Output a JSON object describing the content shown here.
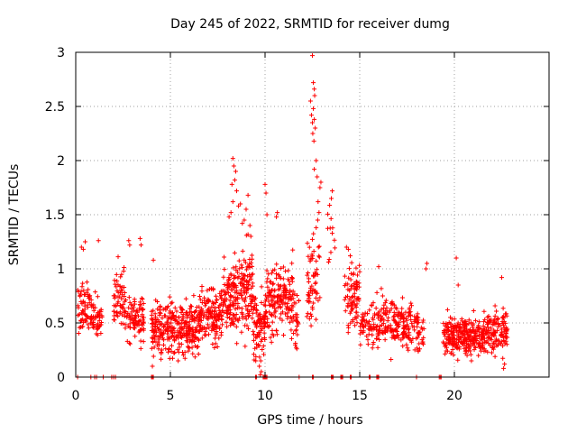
{
  "chart_data": {
    "type": "scatter",
    "title": "Day 245 of 2022, SRMTID for receiver dumg",
    "xlabel": "GPS time / hours",
    "ylabel": "SRMTID / TECUs",
    "xlim": [
      0,
      25
    ],
    "ylim": [
      0,
      3
    ],
    "xticks": [
      0,
      5,
      10,
      15,
      20
    ],
    "yticks": [
      0,
      0.5,
      1,
      1.5,
      2,
      2.5,
      3
    ],
    "xtick_labels": [
      "0",
      "5",
      "10",
      "15",
      "20"
    ],
    "ytick_labels": [
      "0",
      "0.5",
      "1",
      "1.5",
      "2",
      "2.5",
      "3"
    ],
    "grid": true,
    "marker": "+",
    "color": "#ff0000",
    "seed": 245,
    "segments": [
      {
        "x": [
          0.1,
          0.9
        ],
        "mean": 0.65,
        "spread": 0.18,
        "n": 70
      },
      {
        "x": [
          0.9,
          1.4
        ],
        "mean": 0.5,
        "spread": 0.15,
        "n": 45
      },
      {
        "x": [
          2.0,
          2.6
        ],
        "mean": 0.72,
        "spread": 0.2,
        "n": 60
      },
      {
        "x": [
          2.6,
          3.6
        ],
        "mean": 0.55,
        "spread": 0.16,
        "n": 90
      },
      {
        "x": [
          4.0,
          5.0
        ],
        "mean": 0.45,
        "spread": 0.16,
        "n": 120
      },
      {
        "x": [
          5.0,
          6.5
        ],
        "mean": 0.45,
        "spread": 0.17,
        "n": 190
      },
      {
        "x": [
          6.5,
          7.8
        ],
        "mean": 0.58,
        "spread": 0.17,
        "n": 160
      },
      {
        "x": [
          7.8,
          8.6
        ],
        "mean": 0.75,
        "spread": 0.25,
        "n": 110
      },
      {
        "x": [
          8.6,
          9.4
        ],
        "mean": 0.8,
        "spread": 0.28,
        "n": 110
      },
      {
        "x": [
          9.4,
          10.0
        ],
        "mean": 0.5,
        "spread": 0.25,
        "n": 80
      },
      {
        "x": [
          10.0,
          11.5
        ],
        "mean": 0.72,
        "spread": 0.22,
        "n": 180
      },
      {
        "x": [
          11.5,
          11.8
        ],
        "mean": 0.55,
        "spread": 0.18,
        "n": 25
      },
      {
        "x": [
          12.2,
          12.9
        ],
        "mean": 0.9,
        "spread": 0.3,
        "n": 60
      },
      {
        "x": [
          13.3,
          13.7
        ],
        "mean": 1.25,
        "spread": 0.35,
        "n": 12
      },
      {
        "x": [
          14.2,
          15.0
        ],
        "mean": 0.75,
        "spread": 0.22,
        "n": 80
      },
      {
        "x": [
          15.0,
          15.6
        ],
        "mean": 0.45,
        "spread": 0.12,
        "n": 40
      },
      {
        "x": [
          15.6,
          16.2
        ],
        "mean": 0.5,
        "spread": 0.15,
        "n": 50
      },
      {
        "x": [
          16.2,
          17.3
        ],
        "mean": 0.5,
        "spread": 0.15,
        "n": 100
      },
      {
        "x": [
          17.3,
          18.4
        ],
        "mean": 0.45,
        "spread": 0.14,
        "n": 90
      },
      {
        "x": [
          19.4,
          20.3
        ],
        "mean": 0.38,
        "spread": 0.12,
        "n": 110
      },
      {
        "x": [
          20.3,
          21.5
        ],
        "mean": 0.38,
        "spread": 0.12,
        "n": 150
      },
      {
        "x": [
          21.5,
          22.8
        ],
        "mean": 0.42,
        "spread": 0.14,
        "n": 150
      }
    ],
    "peak_points": [
      [
        12.5,
        2.97
      ],
      [
        12.55,
        2.72
      ],
      [
        12.6,
        2.66
      ],
      [
        12.62,
        2.6
      ],
      [
        12.45,
        2.42
      ],
      [
        12.5,
        2.35
      ],
      [
        12.55,
        2.48
      ],
      [
        12.4,
        2.55
      ],
      [
        12.6,
        2.38
      ],
      [
        12.65,
        2.3
      ],
      [
        12.52,
        2.25
      ],
      [
        12.58,
        2.18
      ],
      [
        12.7,
        2.0
      ],
      [
        12.6,
        1.92
      ],
      [
        12.75,
        1.85
      ],
      [
        12.8,
        1.62
      ],
      [
        12.85,
        1.52
      ],
      [
        12.78,
        1.45
      ],
      [
        12.9,
        1.75
      ],
      [
        12.95,
        1.8
      ],
      [
        13.5,
        1.65
      ],
      [
        13.55,
        1.72
      ],
      [
        12.7,
        1.38
      ],
      [
        12.82,
        1.2
      ],
      [
        8.3,
        2.02
      ],
      [
        8.35,
        1.95
      ],
      [
        8.4,
        1.82
      ],
      [
        8.25,
        1.78
      ],
      [
        8.45,
        1.9
      ],
      [
        8.5,
        1.72
      ],
      [
        8.2,
        1.52
      ],
      [
        8.3,
        1.62
      ],
      [
        8.1,
        1.48
      ],
      [
        8.6,
        1.58
      ],
      [
        8.7,
        1.6
      ],
      [
        8.9,
        1.45
      ],
      [
        9.1,
        1.68
      ],
      [
        9.0,
        1.55
      ],
      [
        8.8,
        1.42
      ],
      [
        10.0,
        1.78
      ],
      [
        10.05,
        1.7
      ],
      [
        10.1,
        1.5
      ],
      [
        10.6,
        1.48
      ],
      [
        10.65,
        1.52
      ],
      [
        9.2,
        1.4
      ],
      [
        9.25,
        1.3
      ],
      [
        4.1,
        1.08
      ],
      [
        2.8,
        1.26
      ],
      [
        2.85,
        1.22
      ],
      [
        1.2,
        1.26
      ],
      [
        0.5,
        1.25
      ],
      [
        0.3,
        1.2
      ],
      [
        0.4,
        1.18
      ],
      [
        14.3,
        1.2
      ],
      [
        14.4,
        1.18
      ],
      [
        14.5,
        1.12
      ],
      [
        16.0,
        1.02
      ],
      [
        18.5,
        1.0
      ],
      [
        18.55,
        1.05
      ],
      [
        20.1,
        1.1
      ],
      [
        22.5,
        0.92
      ],
      [
        20.2,
        0.85
      ],
      [
        3.4,
        1.28
      ],
      [
        3.45,
        1.22
      ],
      [
        9.7,
        0.1
      ],
      [
        9.8,
        0.05
      ],
      [
        9.75,
        0.02
      ],
      [
        4.05,
        0.1
      ],
      [
        20.9,
        0.15
      ],
      [
        22.6,
        0.08
      ],
      [
        22.65,
        0.12
      ]
    ],
    "zero_points": [
      0.1,
      0.8,
      1.0,
      1.1,
      1.45,
      1.9,
      2.0,
      2.1,
      4.0,
      4.05,
      4.1,
      9.5,
      9.55,
      9.9,
      9.95,
      10.0,
      10.05,
      10.1,
      11.8,
      12.5,
      12.55,
      13.5,
      13.55,
      13.6,
      14.0,
      14.05,
      14.1,
      14.5,
      14.55,
      15.5,
      15.55,
      15.9,
      15.95,
      16.0,
      18.0,
      19.2,
      19.25,
      19.3
    ]
  }
}
